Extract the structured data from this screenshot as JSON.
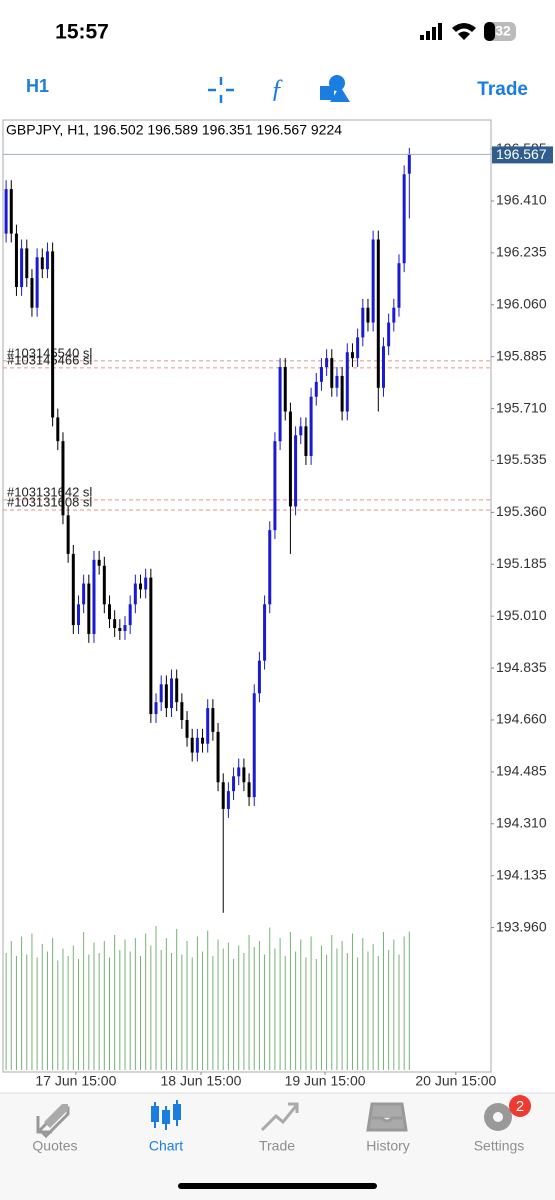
{
  "status_bar": {
    "time": "15:57",
    "battery": "32"
  },
  "toolbar": {
    "timeframe": "H1",
    "trade": "Trade"
  },
  "chart_data": {
    "type": "candlestick",
    "title": "GBPJPY, H1, 196.502 196.589 196.351 196.567 9224",
    "open": [
      196.3,
      196.45,
      196.3,
      196.12,
      196.25,
      196.15,
      196.05,
      196.22,
      196.18,
      196.24,
      195.68,
      195.6,
      195.35,
      195.22,
      194.98,
      195.05,
      195.12,
      194.95,
      195.2,
      195.18,
      195.05,
      195.0,
      194.97,
      194.96,
      194.98,
      195.05,
      195.12,
      195.1,
      195.14,
      194.68,
      194.72,
      194.78,
      194.7,
      194.8,
      194.72,
      194.66,
      194.6,
      194.55,
      194.6,
      194.58,
      194.7,
      194.62,
      194.45,
      194.36,
      194.42,
      194.47,
      194.5,
      194.45,
      194.4,
      194.75,
      194.86,
      195.05,
      195.3,
      195.6,
      195.85,
      195.7,
      195.38,
      195.62,
      195.65,
      195.55,
      195.75,
      195.8,
      195.85,
      195.88,
      195.78,
      195.82,
      195.7,
      195.9,
      195.88,
      195.95,
      196.05,
      196.0,
      196.28,
      195.78,
      195.92,
      196.0,
      196.05,
      196.2,
      196.502
    ],
    "high": [
      196.48,
      196.48,
      196.33,
      196.28,
      196.28,
      196.18,
      196.25,
      196.25,
      196.27,
      196.27,
      195.71,
      195.63,
      195.38,
      195.25,
      195.08,
      195.15,
      195.15,
      195.23,
      195.23,
      195.21,
      195.08,
      195.03,
      195.0,
      195.01,
      195.08,
      195.15,
      195.15,
      195.17,
      195.17,
      194.75,
      194.81,
      194.81,
      194.83,
      194.83,
      194.75,
      194.69,
      194.63,
      194.63,
      194.63,
      194.73,
      194.73,
      194.65,
      194.48,
      194.45,
      194.5,
      194.53,
      194.53,
      194.48,
      194.78,
      194.89,
      195.08,
      195.33,
      195.63,
      195.88,
      195.88,
      195.73,
      195.65,
      195.68,
      195.68,
      195.78,
      195.83,
      195.88,
      195.91,
      195.91,
      195.85,
      195.85,
      195.93,
      195.93,
      195.98,
      196.08,
      196.08,
      196.31,
      196.31,
      195.95,
      196.03,
      196.08,
      196.23,
      196.53,
      196.589
    ],
    "low": [
      196.27,
      196.27,
      196.09,
      196.09,
      196.12,
      196.02,
      196.02,
      196.15,
      196.15,
      195.65,
      195.57,
      195.32,
      195.19,
      194.95,
      194.95,
      195.02,
      194.92,
      194.92,
      195.15,
      195.02,
      194.97,
      194.94,
      194.93,
      194.93,
      194.95,
      195.02,
      195.07,
      195.07,
      194.65,
      194.65,
      194.69,
      194.67,
      194.67,
      194.69,
      194.63,
      194.57,
      194.52,
      194.52,
      194.55,
      194.55,
      194.59,
      194.42,
      194.01,
      194.33,
      194.39,
      194.44,
      194.42,
      194.37,
      194.37,
      194.72,
      194.83,
      195.02,
      195.27,
      195.57,
      195.67,
      195.22,
      195.35,
      195.59,
      195.52,
      195.52,
      195.72,
      195.77,
      195.82,
      195.75,
      195.75,
      195.67,
      195.67,
      195.85,
      195.85,
      195.92,
      195.97,
      195.97,
      195.7,
      195.75,
      195.89,
      195.97,
      196.02,
      196.17,
      196.351
    ],
    "close": [
      196.45,
      196.3,
      196.12,
      196.25,
      196.15,
      196.05,
      196.22,
      196.18,
      196.24,
      195.68,
      195.6,
      195.35,
      195.22,
      194.98,
      195.05,
      195.12,
      194.95,
      195.2,
      195.18,
      195.05,
      195.0,
      194.97,
      194.96,
      194.98,
      195.05,
      195.12,
      195.1,
      195.14,
      194.68,
      194.72,
      194.78,
      194.7,
      194.8,
      194.72,
      194.66,
      194.6,
      194.55,
      194.6,
      194.58,
      194.7,
      194.62,
      194.45,
      194.36,
      194.42,
      194.47,
      194.5,
      194.45,
      194.4,
      194.75,
      194.86,
      195.05,
      195.3,
      195.6,
      195.85,
      195.7,
      195.38,
      195.62,
      195.65,
      195.55,
      195.75,
      195.8,
      195.85,
      195.88,
      195.78,
      195.82,
      195.7,
      195.9,
      195.88,
      195.95,
      196.05,
      196.0,
      196.28,
      195.78,
      195.92,
      196.0,
      196.05,
      196.2,
      196.5,
      196.567
    ],
    "volume": [
      7800,
      8600,
      7600,
      8900,
      7700,
      9100,
      7500,
      8400,
      7900,
      8800,
      7300,
      8100,
      7600,
      8300,
      7400,
      9200,
      7700,
      8500,
      7800,
      8600,
      7500,
      9000,
      8000,
      8700,
      7900,
      8800,
      7600,
      9100,
      8300,
      9600,
      8000,
      8800,
      7800,
      9400,
      7700,
      8600,
      7500,
      8900,
      7900,
      9300,
      7600,
      8700,
      8100,
      8500,
      7400,
      8300,
      7800,
      9000,
      8200,
      8600,
      7700,
      9500,
      8100,
      8800,
      7600,
      9200,
      7900,
      8700,
      7500,
      8900,
      7400,
      8300,
      7700,
      9000,
      8100,
      8600,
      7800,
      9100,
      7500,
      8800,
      7900,
      8400,
      7600,
      9200,
      8000,
      8700,
      7700,
      8900,
      9224
    ],
    "xlim": [
      -0.6,
      93.8
    ],
    "xticks": [
      {
        "value": 13.5,
        "label": "17 Jun 15:00"
      },
      {
        "value": 37.7,
        "label": "18 Jun 15:00"
      },
      {
        "value": 61.7,
        "label": "19 Jun 15:00"
      },
      {
        "value": 87,
        "label": "20 Jun 15:00"
      }
    ],
    "ylim": [
      193.473,
      196.683
    ],
    "yticks": [
      196.585,
      {
        "value": 196.41,
        "label": "196.410"
      },
      196.235,
      {
        "value": 196.06,
        "label": "196.060"
      },
      195.885,
      {
        "value": 195.71,
        "label": "195.710"
      },
      195.535,
      {
        "value": 195.36,
        "label": "195.360"
      },
      195.185,
      {
        "value": 195.01,
        "label": "195.010"
      },
      194.835,
      {
        "value": 194.66,
        "label": "194.660"
      },
      194.485,
      {
        "value": 194.31,
        "label": "194.310"
      },
      194.135,
      {
        "value": 193.96,
        "label": "193.960"
      }
    ],
    "vlim": [
      0,
      10000
    ],
    "current_price": {
      "value": 196.567,
      "label": "196.567"
    },
    "order_lines": [
      {
        "value": 195.871,
        "label": "#103145540 sl"
      },
      {
        "value": 195.847,
        "label": "#103145466 sl"
      },
      {
        "value": 195.402,
        "label": "#103131642 sl"
      },
      {
        "value": 195.368,
        "label": "#103131608 sl"
      }
    ],
    "colors": {
      "up": "#1a1ad0",
      "down": "#000000",
      "volume": "#77b077",
      "order_line": "#e79585",
      "price_line": "#9fb0c0",
      "price_box": "#2f5e8e"
    }
  },
  "tab_bar": {
    "tabs": [
      {
        "label": "Quotes"
      },
      {
        "label": "Chart"
      },
      {
        "label": "Trade"
      },
      {
        "label": "History"
      },
      {
        "label": "Settings"
      }
    ],
    "active": 1,
    "badge": "2"
  }
}
